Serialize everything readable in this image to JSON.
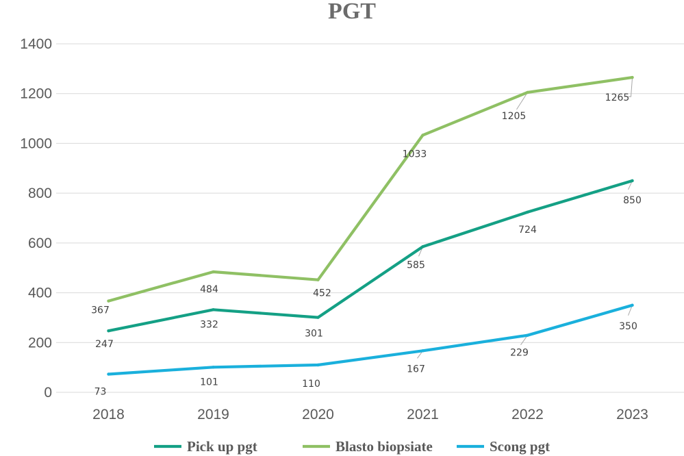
{
  "chart_data": {
    "type": "line",
    "title": "PGT",
    "xlabel": "",
    "ylabel": "",
    "categories": [
      "2018",
      "2019",
      "2020",
      "2021",
      "2022",
      "2023"
    ],
    "ylim": [
      0,
      1400
    ],
    "yticks": [
      0,
      200,
      400,
      600,
      800,
      1000,
      1200,
      1400
    ],
    "grid": true,
    "legend_position": "bottom",
    "series": [
      {
        "name": "Pick up pgt",
        "color": "#14a085",
        "values": [
          247,
          332,
          301,
          585,
          724,
          850
        ]
      },
      {
        "name": "Blasto biopsiate",
        "color": "#8fc064",
        "values": [
          367,
          484,
          452,
          1033,
          1205,
          1265
        ]
      },
      {
        "name": "Scong pgt",
        "color": "#1ab0dc",
        "values": [
          73,
          101,
          110,
          167,
          229,
          350
        ]
      }
    ]
  }
}
